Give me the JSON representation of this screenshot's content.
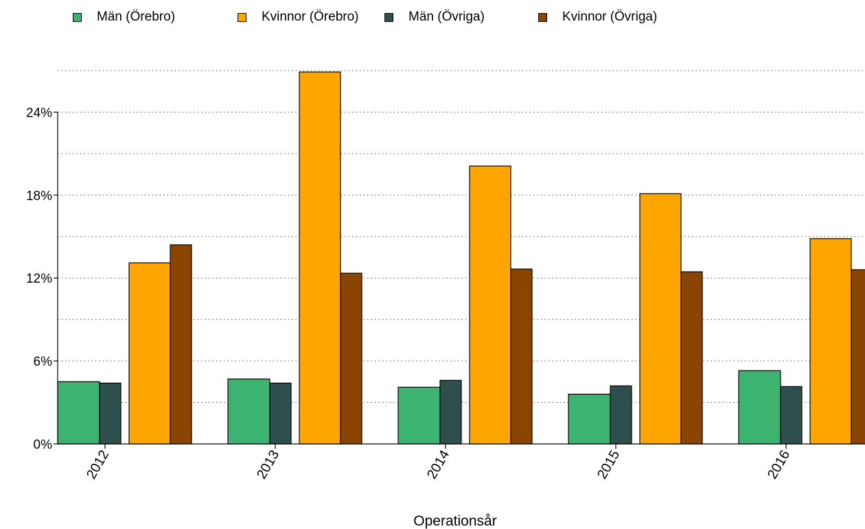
{
  "chart_data": {
    "type": "bar",
    "title": "",
    "xlabel": "Operationsår",
    "ylabel": "",
    "categories": [
      "2012",
      "2013",
      "2014",
      "2015",
      "2016"
    ],
    "series": [
      {
        "name": "Män (Örebro)",
        "color": "#3cb371",
        "values": [
          4.5,
          4.7,
          4.1,
          3.6,
          5.3
        ]
      },
      {
        "name": "Män (Övriga)",
        "color": "#2f4f4f",
        "values": [
          4.4,
          4.4,
          4.6,
          4.2,
          4.15
        ]
      },
      {
        "name": "Kvinnor (Örebro)",
        "color": "#ffa500",
        "values": [
          13.1,
          26.9,
          20.1,
          18.1,
          14.85
        ]
      },
      {
        "name": "Kvinnor (Övriga)",
        "color": "#8b4500",
        "values": [
          14.4,
          12.35,
          12.65,
          12.45,
          12.6
        ]
      }
    ],
    "yticks": [
      0,
      6,
      12,
      18,
      24
    ],
    "ytick_labels": [
      "0%",
      "6%",
      "12%",
      "18%",
      "24%"
    ],
    "ylim": [
      0,
      27
    ],
    "grid": "horizontal dotted",
    "legend_placement": "top"
  }
}
